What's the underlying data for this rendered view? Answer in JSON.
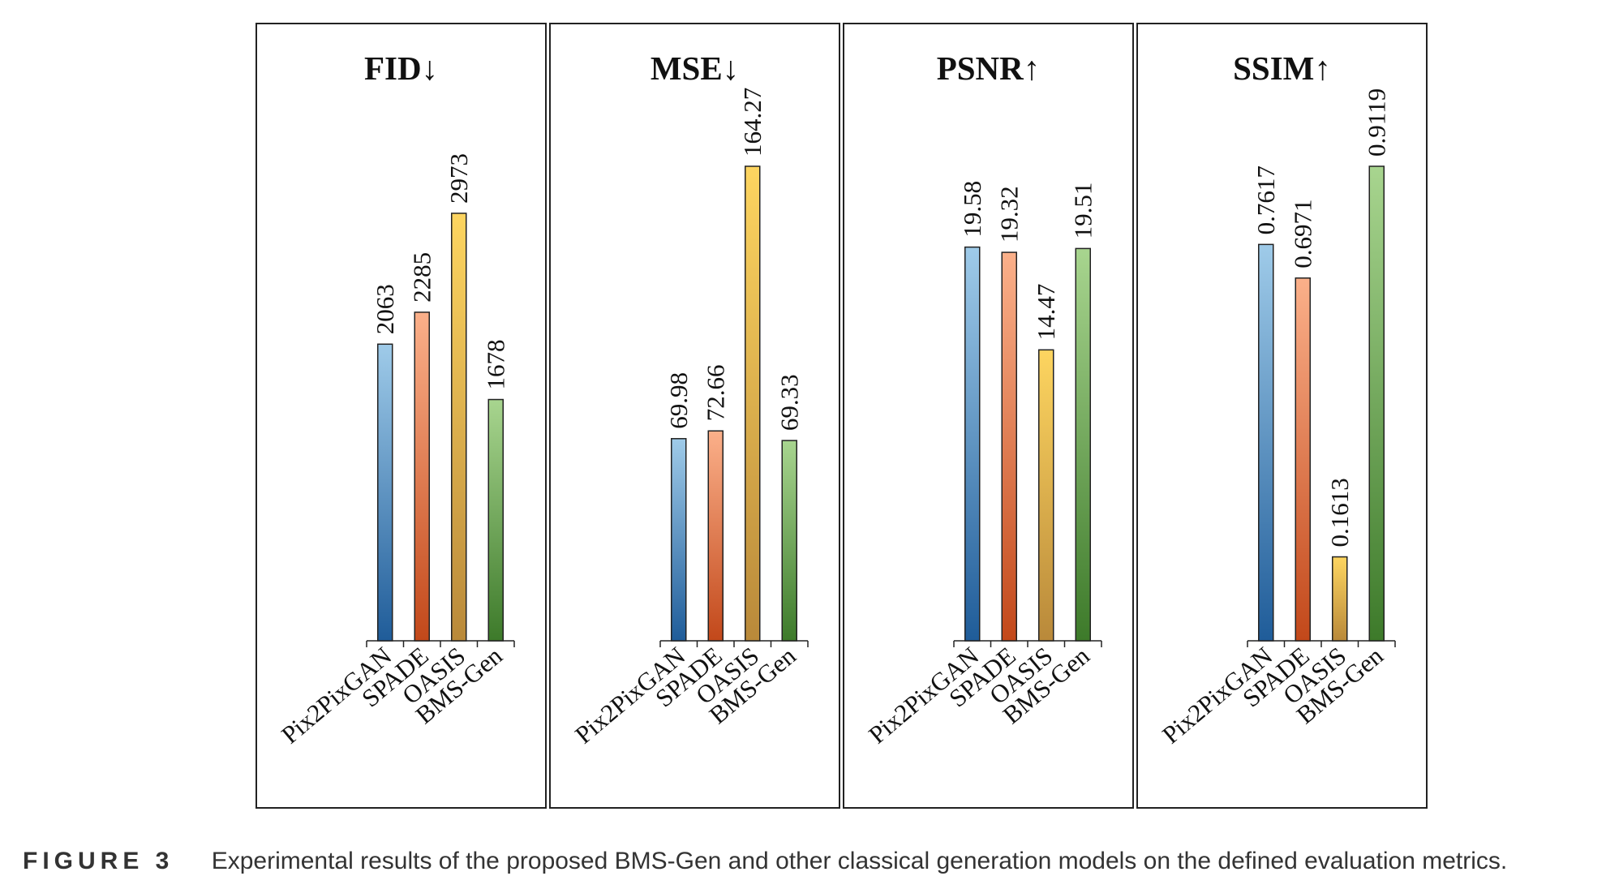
{
  "chart_data": [
    {
      "type": "bar",
      "title": "FID↓",
      "categories": [
        "Pix2PixGAN",
        "SPADE",
        "OASIS",
        "BMS-Gen"
      ],
      "values": [
        2063,
        2285,
        2973,
        1678
      ],
      "value_labels": [
        "2063",
        "2285",
        "2973",
        "1678"
      ],
      "ylim": [
        0,
        3300
      ]
    },
    {
      "type": "bar",
      "title": "MSE↓",
      "categories": [
        "Pix2PixGAN",
        "SPADE",
        "OASIS",
        "BMS-Gen"
      ],
      "values": [
        69.98,
        72.66,
        164.27,
        69.33
      ],
      "value_labels": [
        "69.98",
        "72.66",
        "164.27",
        "69.33"
      ],
      "ylim": [
        0,
        164.27
      ]
    },
    {
      "type": "bar",
      "title": "PSNR↑",
      "categories": [
        "Pix2PixGAN",
        "SPADE",
        "OASIS",
        "BMS-Gen"
      ],
      "values": [
        19.58,
        19.32,
        14.47,
        19.51
      ],
      "value_labels": [
        "19.58",
        "19.32",
        "14.47",
        "19.51"
      ],
      "ylim": [
        0,
        23.6
      ]
    },
    {
      "type": "bar",
      "title": "SSIM↑",
      "categories": [
        "Pix2PixGAN",
        "SPADE",
        "OASIS",
        "BMS-Gen"
      ],
      "values": [
        0.7617,
        0.6971,
        0.1613,
        0.9119
      ],
      "value_labels": [
        "0.7617",
        "0.6971",
        "0.1613",
        "0.9119"
      ],
      "ylim": [
        0,
        0.9119
      ]
    }
  ],
  "bar_colors": [
    {
      "top": "#9fcbe9",
      "bottom": "#1f5c99"
    },
    {
      "top": "#fbb08a",
      "bottom": "#c2481a"
    },
    {
      "top": "#fdd560",
      "bottom": "#b9893a"
    },
    {
      "top": "#a8d58f",
      "bottom": "#3d7a2a"
    }
  ],
  "caption": {
    "label": "FIGURE 3",
    "text": "Experimental results of the proposed BMS-Gen and other classical generation models on the defined evaluation metrics."
  }
}
